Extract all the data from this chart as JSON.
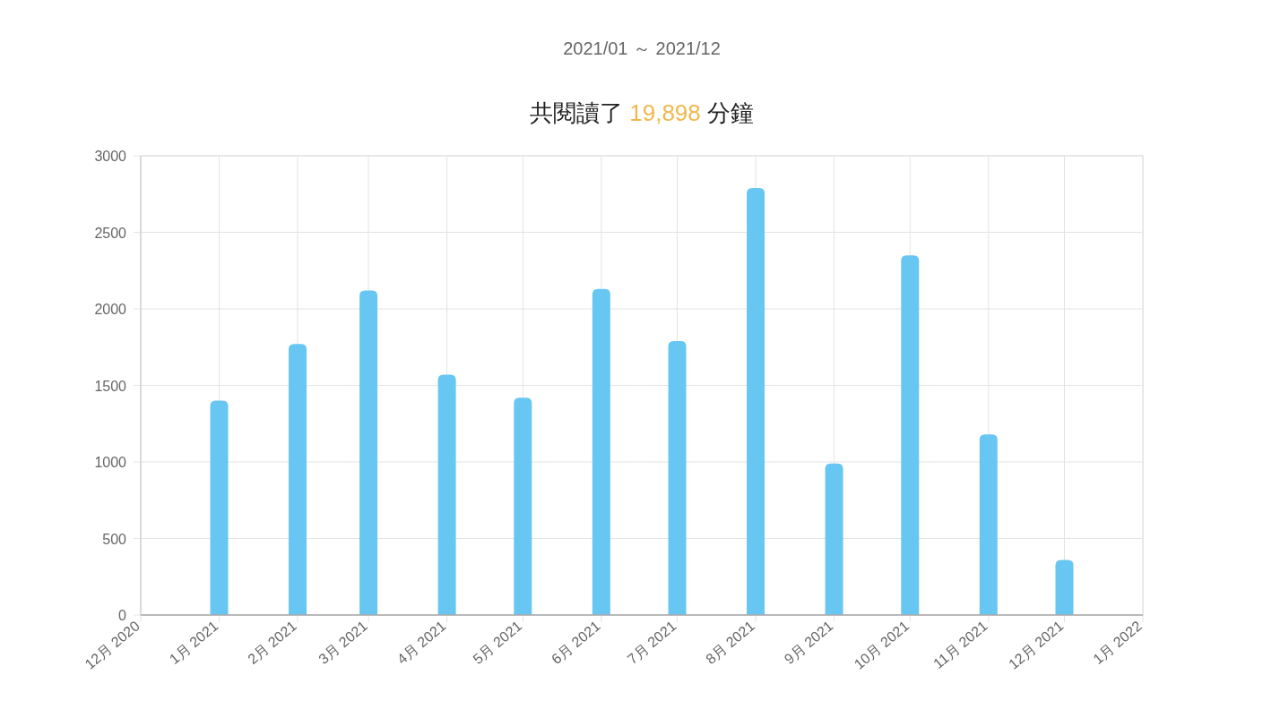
{
  "chart_data": {
    "type": "bar",
    "subtitle": "2021/01 ～ 2021/12",
    "title": "共閱讀了 19,898 分鐘",
    "x": [
      "2021-01",
      "2021-02",
      "2021-03",
      "2021-04",
      "2021-05",
      "2021-06",
      "2021-07",
      "2021-08",
      "2021-09",
      "2021-10",
      "2021-11",
      "2021-12"
    ],
    "values": [
      1400,
      1770,
      2120,
      1570,
      1420,
      2130,
      1790,
      2790,
      990,
      2350,
      1180,
      360
    ],
    "color": "#68c6f2",
    "xlim": [
      "2020-12",
      "2022-01"
    ],
    "xticks": [
      {
        "value": "2020-12",
        "label": "12月 2020"
      },
      {
        "value": "2021-01",
        "label": "1月 2021"
      },
      {
        "value": "2021-02",
        "label": "2月 2021"
      },
      {
        "value": "2021-03",
        "label": "3月 2021"
      },
      {
        "value": "2021-04",
        "label": "4月 2021"
      },
      {
        "value": "2021-05",
        "label": "5月 2021"
      },
      {
        "value": "2021-06",
        "label": "6月 2021"
      },
      {
        "value": "2021-07",
        "label": "7月 2021"
      },
      {
        "value": "2021-08",
        "label": "8月 2021"
      },
      {
        "value": "2021-09",
        "label": "9月 2021"
      },
      {
        "value": "2021-10",
        "label": "10月 2021"
      },
      {
        "value": "2021-11",
        "label": "11月 2021"
      },
      {
        "value": "2021-12",
        "label": "12月 2021"
      },
      {
        "value": "2022-01",
        "label": "1月 2022"
      }
    ],
    "ylim": [
      0,
      3000
    ],
    "yticks": [
      0,
      500,
      1000,
      1500,
      2000,
      2500,
      3000
    ],
    "grid": true
  }
}
